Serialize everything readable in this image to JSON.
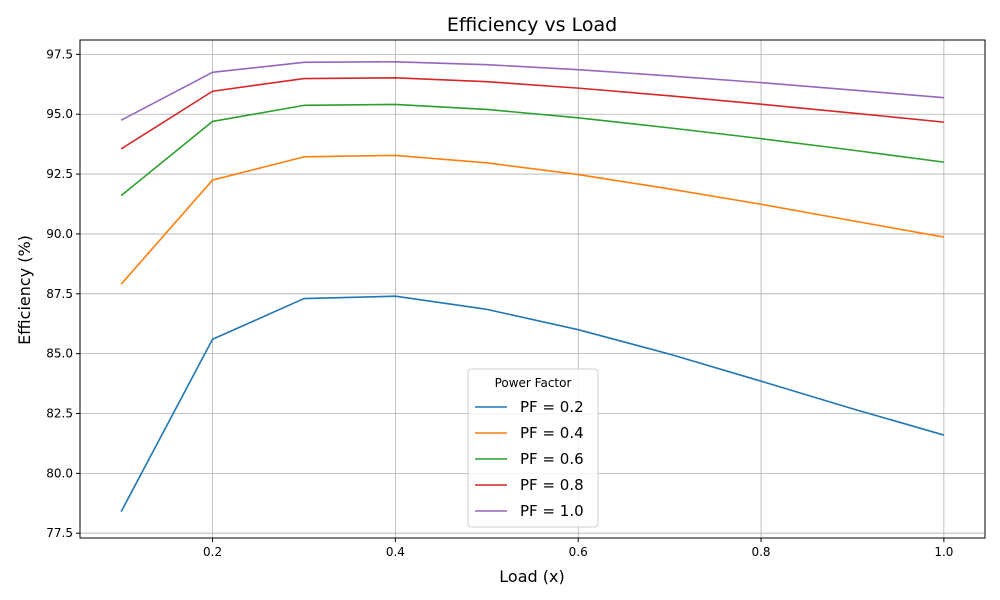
{
  "chart_data": {
    "type": "line",
    "title": "Efficiency vs Load",
    "xlabel": "Load (x)",
    "ylabel": "Efficiency (%)",
    "xlim": [
      0.055,
      1.045
    ],
    "ylim": [
      77.3,
      98.1
    ],
    "xticks": [
      0.2,
      0.4,
      0.6,
      0.8,
      1.0
    ],
    "xtick_labels": [
      "0.2",
      "0.4",
      "0.6",
      "0.8",
      "1.0"
    ],
    "yticks": [
      77.5,
      80.0,
      82.5,
      85.0,
      87.5,
      90.0,
      92.5,
      95.0,
      97.5
    ],
    "ytick_labels": [
      "77.5",
      "80.0",
      "82.5",
      "85.0",
      "87.5",
      "90.0",
      "92.5",
      "95.0",
      "97.5"
    ],
    "grid": true,
    "legend": {
      "title": "Power Factor",
      "placement": "bottom-center"
    },
    "x": [
      0.1,
      0.2,
      0.3,
      0.4,
      0.5,
      0.6,
      0.7,
      0.8,
      0.9,
      1.0
    ],
    "series": [
      {
        "name": "PF = 0.2",
        "color": "#1f77b4",
        "values": [
          78.4,
          85.6,
          87.3,
          87.4,
          86.85,
          86.0,
          84.98,
          83.85,
          82.7,
          81.6
        ]
      },
      {
        "name": "PF = 0.4",
        "color": "#ff7f0e",
        "values": [
          87.9,
          92.25,
          93.22,
          93.28,
          92.97,
          92.48,
          91.88,
          91.24,
          90.55,
          89.87
        ]
      },
      {
        "name": "PF = 0.6",
        "color": "#2ca02c",
        "values": [
          91.6,
          94.7,
          95.37,
          95.41,
          95.2,
          94.85,
          94.43,
          93.98,
          93.5,
          93.0
        ]
      },
      {
        "name": "PF = 0.8",
        "color": "#d62728",
        "values": [
          93.55,
          95.96,
          96.49,
          96.52,
          96.36,
          96.09,
          95.77,
          95.42,
          95.05,
          94.67
        ]
      },
      {
        "name": "PF = 1.0",
        "color": "#9467bd",
        "values": [
          94.75,
          96.75,
          97.17,
          97.19,
          97.07,
          96.86,
          96.6,
          96.32,
          96.01,
          95.69
        ]
      }
    ]
  }
}
